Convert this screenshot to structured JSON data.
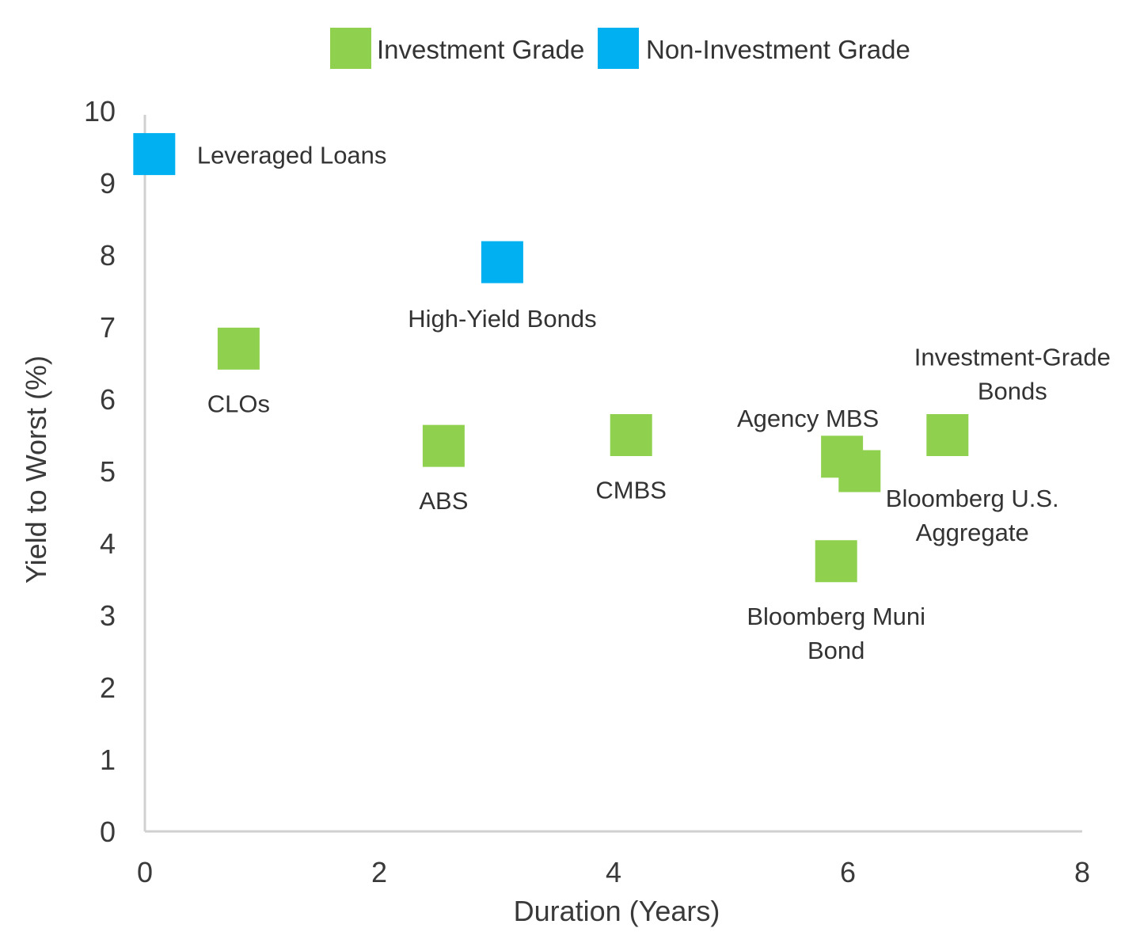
{
  "colors": {
    "investment_grade": "#8fd14f",
    "non_investment_grade": "#00b0f0",
    "axis": "#d0d0d0",
    "text": "#333333"
  },
  "chart_data": {
    "type": "scatter",
    "xlabel": "Duration (Years)",
    "ylabel": "Yield to Worst (%)",
    "xlim": [
      0,
      8
    ],
    "ylim": [
      0,
      10
    ],
    "x_ticks": [
      "0",
      "2",
      "4",
      "6",
      "8"
    ],
    "y_ticks": [
      "0",
      "1",
      "2",
      "3",
      "4",
      "5",
      "6",
      "7",
      "8",
      "9",
      "10"
    ],
    "grid": false,
    "legend_position": "top-center",
    "series": [
      {
        "name": "Investment Grade",
        "color": "#8fd14f",
        "points": [
          {
            "x": 0.8,
            "y": 6.7,
            "label": [
              "CLOs"
            ]
          },
          {
            "x": 2.55,
            "y": 5.35,
            "label": [
              "ABS"
            ]
          },
          {
            "x": 4.15,
            "y": 5.5,
            "label": [
              "CMBS"
            ]
          },
          {
            "x": 5.95,
            "y": 5.2,
            "label": [
              "Agency MBS"
            ]
          },
          {
            "x": 6.1,
            "y": 5.0,
            "label": [
              "Bloomberg U.S.",
              "Aggregate"
            ]
          },
          {
            "x": 6.85,
            "y": 5.5,
            "label": [
              "Investment-Grade",
              "Bonds"
            ]
          },
          {
            "x": 5.9,
            "y": 3.75,
            "label": [
              "Bloomberg Muni",
              "Bond"
            ]
          }
        ]
      },
      {
        "name": "Non-Investment Grade",
        "color": "#00b0f0",
        "points": [
          {
            "x": 0.08,
            "y": 9.4,
            "label": [
              "Leveraged Loans"
            ]
          },
          {
            "x": 3.05,
            "y": 7.9,
            "label": [
              "High-Yield Bonds"
            ]
          }
        ]
      }
    ]
  }
}
